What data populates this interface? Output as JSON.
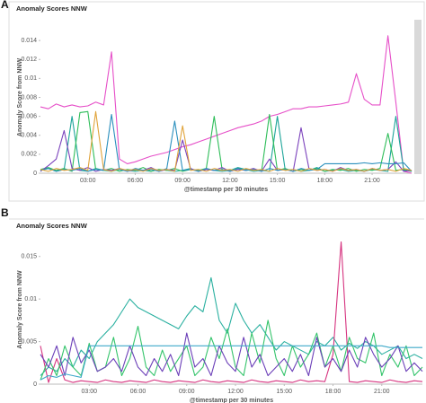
{
  "panel_labels": [
    "A",
    "B"
  ],
  "chart_data": [
    {
      "type": "line",
      "title": "Anomaly Scores NNW",
      "x_label": "@timestamp per 30 minutes",
      "y_label": "Anomaly Score from NNW",
      "x": [
        0,
        0.5,
        1,
        1.5,
        2,
        2.5,
        3,
        3.5,
        4,
        4.5,
        5,
        5.5,
        6,
        6.5,
        7,
        7.5,
        8,
        8.5,
        9,
        9.5,
        10,
        10.5,
        11,
        11.5,
        12,
        12.5,
        13,
        13.5,
        14,
        14.5,
        15,
        15.5,
        16,
        16.5,
        17,
        17.5,
        18,
        18.5,
        19,
        19.5,
        20,
        20.5,
        21,
        21.5,
        22,
        22.5,
        23,
        23.5
      ],
      "xlim": [
        0,
        23.5
      ],
      "xticks": [
        {
          "value": 3,
          "label": "03:00"
        },
        {
          "value": 6,
          "label": "06:00"
        },
        {
          "value": 9,
          "label": "09:00"
        },
        {
          "value": 12,
          "label": "12:00"
        },
        {
          "value": 15,
          "label": "15:00"
        },
        {
          "value": 18,
          "label": "18:00"
        },
        {
          "value": 21,
          "label": "21:00"
        }
      ],
      "ylim": [
        0,
        0.016
      ],
      "yticks": [
        0,
        0.002,
        0.004,
        0.006,
        0.008,
        0.01,
        0.012,
        0.014
      ],
      "series": [
        {
          "color": "#e64fc8",
          "values": [
            0.007,
            0.0068,
            0.0073,
            0.007,
            0.0072,
            0.007,
            0.0071,
            0.0075,
            0.0072,
            0.0128,
            0.0015,
            0.001,
            0.0012,
            0.0015,
            0.0018,
            0.002,
            0.0022,
            0.0025,
            0.0028,
            0.003,
            0.0033,
            0.0036,
            0.0039,
            0.0042,
            0.0045,
            0.0048,
            0.005,
            0.0052,
            0.0055,
            0.006,
            0.0062,
            0.0065,
            0.0068,
            0.0068,
            0.007,
            0.007,
            0.0071,
            0.0072,
            0.0073,
            0.0075,
            0.0105,
            0.0078,
            0.0072,
            0.0072,
            0.0145,
            0.0075,
            0.0002,
            0
          ]
        },
        {
          "color": "#1ea59a",
          "values": [
            0.0003,
            0.0005,
            0.0002,
            0.0004,
            0.006,
            0.0003,
            0.0002,
            0.0005,
            0.0003,
            0.0002,
            0.0004,
            0.0003,
            0.0002,
            0.0003,
            0.0002,
            0.0004,
            0.0003,
            0.0002,
            0.0003,
            0.0005,
            0.0002,
            0.0004,
            0.0003,
            0.0002,
            0.0003,
            0.0006,
            0.0004,
            0.0002,
            0.0003,
            0.0002,
            0.006,
            0.0003,
            0.0004,
            0.0002,
            0.0003,
            0.0006,
            0.0002,
            0.0003,
            0.0004,
            0.0002,
            0.0003,
            0.0002,
            0.0004,
            0.0003,
            0.0002,
            0.006,
            0.0003,
            0.0002
          ]
        },
        {
          "color": "#2ebd59",
          "values": [
            0.0004,
            0.0006,
            0.0003,
            0.0005,
            0.0002,
            0.0064,
            0.0065,
            0.0004,
            0.0003,
            0.0005,
            0.0002,
            0.0004,
            0.0003,
            0.0006,
            0.0002,
            0.0004,
            0.0003,
            0.0005,
            0.0002,
            0.0004,
            0.0003,
            0.0005,
            0.006,
            0.0004,
            0.0002,
            0.0005,
            0.0003,
            0.0004,
            0.0002,
            0.0062,
            0.0003,
            0.0005,
            0.0002,
            0.0004,
            0.0003,
            0.0005,
            0.0002,
            0.0004,
            0.0003,
            0.0005,
            0.0002,
            0.0004,
            0.0003,
            0.0005,
            0.0042,
            0.0003,
            0.0004,
            0.0002
          ]
        },
        {
          "color": "#7b42bc",
          "values": [
            0.0002,
            0.0008,
            0.0015,
            0.0045,
            0.0005,
            0.0003,
            0.0006,
            0.0002,
            0.0004,
            0.0003,
            0.0005,
            0.0002,
            0.0004,
            0.0003,
            0.0006,
            0.0002,
            0.0004,
            0.0003,
            0.0035,
            0.0005,
            0.0002,
            0.0004,
            0.0003,
            0.0006,
            0.0002,
            0.0004,
            0.0003,
            0.0005,
            0.0002,
            0.0015,
            0.0003,
            0.0004,
            0.0002,
            0.0048,
            0.0005,
            0.0003,
            0.0004,
            0.0002,
            0.0006,
            0.0003,
            0.0004,
            0.0002,
            0.0005,
            0.0003,
            0.0004,
            0.0012,
            0.0002,
            0.0003
          ]
        },
        {
          "color": "#2a8fbd",
          "values": [
            0.0003,
            0.0005,
            0.0002,
            0.0004,
            0.0003,
            0.0005,
            0.0002,
            0.0004,
            0.0003,
            0.0062,
            0.0004,
            0.0002,
            0.0005,
            0.0003,
            0.0004,
            0.0002,
            0.0005,
            0.0055,
            0.0003,
            0.0004,
            0.0002,
            0.0005,
            0.0003,
            0.0004,
            0.0002,
            0.0005,
            0.0003,
            0.0004,
            0.0002,
            0.0005,
            0.0003,
            0.0004,
            0.0002,
            0.0005,
            0.0003,
            0.0004,
            0.001,
            0.001,
            0.001,
            0.001,
            0.001,
            0.0011,
            0.001,
            0.0011,
            0.001,
            0.001,
            0.0011,
            0.0002
          ]
        },
        {
          "color": "#e0a33a",
          "values": [
            0.0004,
            0.0002,
            0.0005,
            0.0003,
            0.0004,
            0.0006,
            0.0003,
            0.0065,
            0.0004,
            0.0002,
            0.0005,
            0.0003,
            0.0004,
            0.0002,
            0.0005,
            0.0003,
            0.0004,
            0.0002,
            0.005,
            0.0003,
            0.0004,
            0.0002,
            0.0005,
            0.0003,
            0.0004,
            0.0002,
            0.0005,
            0.0003,
            0.0004,
            0.0002,
            0.0005,
            0.0003,
            0.0004,
            0.0002,
            0.0005,
            0.0003,
            0.0004,
            0.0002,
            0.0005,
            0.0003,
            0.0004,
            0.0002,
            0.0005,
            0.0003,
            0.0004,
            0.0002,
            0.0005,
            0.0003
          ]
        }
      ]
    },
    {
      "type": "line",
      "title": "Anomaly Scores NNW",
      "x_label": "@timestamp per 30 minutes",
      "y_label": "Anomaly Score from NNW",
      "x": [
        0,
        0.5,
        1,
        1.5,
        2,
        2.5,
        3,
        3.5,
        4,
        4.5,
        5,
        5.5,
        6,
        6.5,
        7,
        7.5,
        8,
        8.5,
        9,
        9.5,
        10,
        10.5,
        11,
        11.5,
        12,
        12.5,
        13,
        13.5,
        14,
        14.5,
        15,
        15.5,
        16,
        16.5,
        17,
        17.5,
        18,
        18.5,
        19,
        19.5,
        20,
        20.5,
        21,
        21.5,
        22,
        22.5,
        23,
        23.5
      ],
      "xlim": [
        0,
        23.5
      ],
      "xticks": [
        {
          "value": 3,
          "label": "03:00"
        },
        {
          "value": 6,
          "label": "06:00"
        },
        {
          "value": 9,
          "label": "09:00"
        },
        {
          "value": 12,
          "label": "12:00"
        },
        {
          "value": 15,
          "label": "15:00"
        },
        {
          "value": 18,
          "label": "18:00"
        },
        {
          "value": 21,
          "label": "21:00"
        }
      ],
      "ylim": [
        0,
        0.0175
      ],
      "yticks": [
        0,
        0.005,
        0.01,
        0.015
      ],
      "series": [
        {
          "color": "#2ab0a0",
          "values": [
            0.001,
            0.002,
            0.0015,
            0.003,
            0.002,
            0.004,
            0.003,
            0.005,
            0.006,
            0.007,
            0.0085,
            0.01,
            0.009,
            0.0085,
            0.008,
            0.0075,
            0.007,
            0.0065,
            0.008,
            0.0092,
            0.0085,
            0.0125,
            0.0075,
            0.006,
            0.0095,
            0.0075,
            0.006,
            0.007,
            0.0055,
            0.004,
            0.005,
            0.0045,
            0.004,
            0.0035,
            0.005,
            0.0045,
            0.0055,
            0.004,
            0.0048,
            0.0042,
            0.005,
            0.0045,
            0.0035,
            0.004,
            0.0045,
            0.003,
            0.0035,
            0.003
          ]
        },
        {
          "color": "#d6337f",
          "values": [
            0.0045,
            0.0002,
            0.003,
            0.0005,
            0.0002,
            0.0004,
            0.0003,
            0.0002,
            0.0005,
            0.0003,
            0.0002,
            0.0004,
            0.0003,
            0.0002,
            0.0005,
            0.0003,
            0.0002,
            0.0004,
            0.0003,
            0.0002,
            0.0005,
            0.0003,
            0.0002,
            0.0004,
            0.0003,
            0.0002,
            0.0005,
            0.0003,
            0.0002,
            0.0004,
            0.0003,
            0.0002,
            0.0005,
            0.0003,
            0.0004,
            0.0003,
            0.0035,
            0.0167,
            0.0003,
            0.0002,
            0.0004,
            0.0003,
            0.0002,
            0.0005,
            0.0003,
            0.0002,
            0.0004,
            0.0003
          ]
        },
        {
          "color": "#34c46b",
          "values": [
            0.0005,
            0.003,
            0.001,
            0.0045,
            0.002,
            0.001,
            0.0048,
            0.0015,
            0.002,
            0.0055,
            0.001,
            0.003,
            0.0068,
            0.002,
            0.001,
            0.004,
            0.0015,
            0.003,
            0.0045,
            0.001,
            0.002,
            0.0055,
            0.003,
            0.0065,
            0.002,
            0.001,
            0.006,
            0.0025,
            0.0075,
            0.003,
            0.001,
            0.0045,
            0.002,
            0.0035,
            0.006,
            0.002,
            0.0045,
            0.0015,
            0.0055,
            0.003,
            0.0025,
            0.006,
            0.001,
            0.0035,
            0.002,
            0.0045,
            0.001,
            0.002
          ]
        },
        {
          "color": "#6b3fb8",
          "values": [
            0.0035,
            0.002,
            0.0045,
            0.001,
            0.0055,
            0.0025,
            0.004,
            0.0015,
            0.002,
            0.003,
            0.0015,
            0.0045,
            0.002,
            0.001,
            0.003,
            0.0015,
            0.0035,
            0.001,
            0.006,
            0.002,
            0.003,
            0.001,
            0.0045,
            0.0025,
            0.0015,
            0.0055,
            0.002,
            0.0035,
            0.001,
            0.002,
            0.003,
            0.0015,
            0.0035,
            0.001,
            0.0055,
            0.002,
            0.003,
            0.0015,
            0.004,
            0.002,
            0.0055,
            0.0035,
            0.002,
            0.003,
            0.0045,
            0.0015,
            0.0025,
            0.0015
          ]
        },
        {
          "color": "#3fa9c9",
          "values": [
            0.0005,
            0.001,
            0.0008,
            0.0012,
            0.001,
            0.0008,
            0.0045,
            0.0045,
            0.0045,
            0.0045,
            0.0045,
            0.0045,
            0.0045,
            0.0045,
            0.0045,
            0.0045,
            0.0045,
            0.0045,
            0.0045,
            0.0045,
            0.0045,
            0.0045,
            0.0045,
            0.0045,
            0.0045,
            0.0045,
            0.0045,
            0.0045,
            0.0045,
            0.0045,
            0.0045,
            0.0045,
            0.0045,
            0.0045,
            0.0045,
            0.0045,
            0.0045,
            0.0045,
            0.0045,
            0.0045,
            0.0045,
            0.0045,
            0.0045,
            0.0043,
            0.0043,
            0.0043,
            0.0043,
            0.0043
          ]
        }
      ]
    }
  ]
}
